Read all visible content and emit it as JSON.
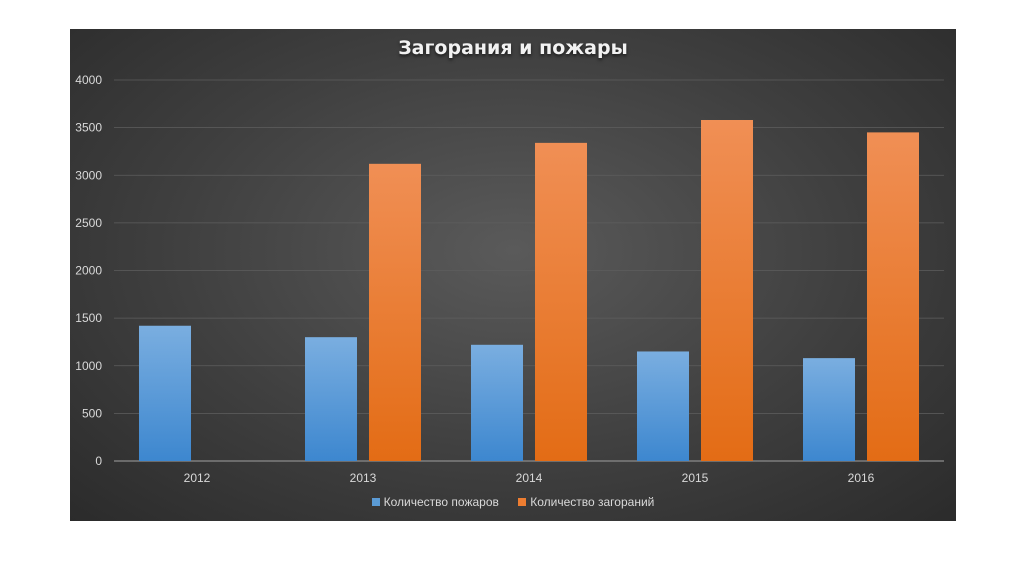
{
  "chart_data": {
    "type": "bar",
    "title": "Загорания и пожары",
    "categories": [
      "2012",
      "2013",
      "2014",
      "2015",
      "2016"
    ],
    "series": [
      {
        "name": "Количество пожаров",
        "values": [
          1420,
          1300,
          1220,
          1150,
          1080
        ],
        "color": "#5b9bd5"
      },
      {
        "name": "Количество загораний",
        "values": [
          0,
          3120,
          3340,
          3580,
          3450
        ],
        "color": "#ed7d31"
      }
    ],
    "ylim": [
      0,
      4000
    ],
    "yticks": [
      "0",
      "500",
      "1000",
      "1500",
      "2000",
      "2500",
      "3000",
      "3500",
      "4000"
    ],
    "grid": true,
    "legend": "bottom"
  }
}
